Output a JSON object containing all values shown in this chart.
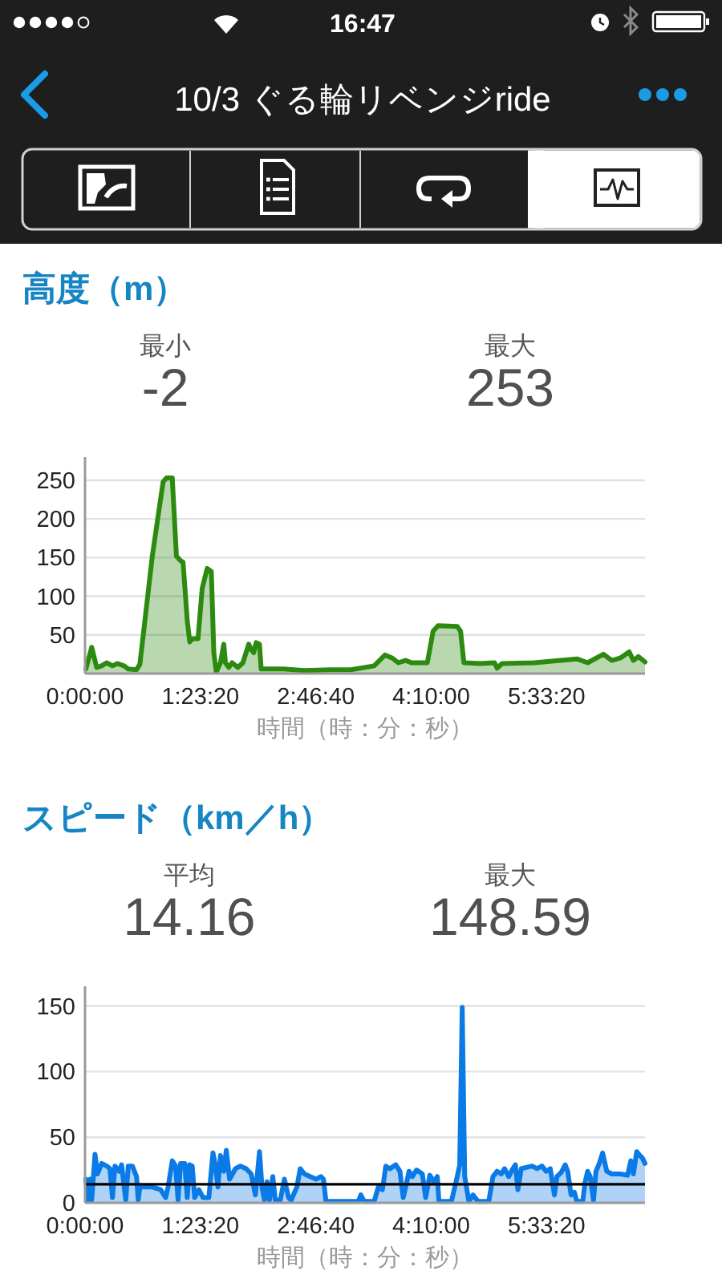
{
  "chart_data": [
    {
      "type": "area",
      "title": "高度（m）",
      "xlabel": "時間（時：分：秒）",
      "annotations": [
        "16:47",
        "10/3 ぐる輪リベンジride",
        "最小",
        "-2",
        "最大",
        "253"
      ],
      "x": [
        0.01,
        0.08,
        0.14,
        0.2,
        0.26,
        0.33,
        0.39,
        0.47,
        0.52,
        0.62,
        0.66,
        0.81,
        0.94,
        0.98,
        1.05,
        1.1,
        1.15,
        1.18,
        1.23,
        1.26,
        1.29,
        1.36,
        1.41,
        1.47,
        1.52,
        1.55,
        1.58,
        1.63,
        1.67,
        1.69,
        1.73,
        1.77,
        1.84,
        1.9,
        1.97,
        2.0,
        2.03,
        2.06,
        2.1,
        2.12,
        2.39,
        2.64,
        2.96,
        3.2,
        3.48,
        3.61,
        3.7,
        3.77,
        3.86,
        3.93,
        4.12,
        4.19,
        4.25,
        4.48,
        4.52,
        4.56,
        4.76,
        4.93,
        4.96,
        5.02,
        5.41,
        5.73,
        5.92,
        6.05,
        6.24,
        6.34,
        6.44,
        6.55,
        6.6,
        6.66,
        6.74
      ],
      "values": [
        6,
        34,
        8,
        10,
        14,
        10,
        13,
        10,
        6,
        5,
        12,
        152,
        248,
        253,
        253,
        152,
        146,
        144,
        69,
        41,
        45,
        45,
        110,
        136,
        132,
        27,
        2,
        14,
        38,
        14,
        8,
        14,
        8,
        14,
        38,
        31,
        27,
        40,
        38,
        6,
        6,
        4,
        5,
        5,
        10,
        24,
        20,
        14,
        17,
        14,
        14,
        55,
        62,
        61,
        55,
        14,
        13,
        14,
        7,
        13,
        14,
        17,
        19,
        14,
        25,
        17,
        20,
        28,
        17,
        22,
        15
      ],
      "color": "#2d8a10",
      "xlim": [
        0,
        6.74
      ],
      "ylim": [
        0,
        280
      ],
      "yticks": [
        50,
        100,
        150,
        200,
        250
      ],
      "xticks": [
        {
          "value": 0,
          "label": "0:00:00"
        },
        {
          "value": 1.3889,
          "label": "1:23:20"
        },
        {
          "value": 2.7778,
          "label": "2:46:40"
        },
        {
          "value": 4.1667,
          "label": "4:10:00"
        },
        {
          "value": 5.5556,
          "label": "5:33:20"
        }
      ],
      "grid": "y"
    },
    {
      "type": "area",
      "title": "スピード（km／h）",
      "xlabel": "時間（時：分：秒）",
      "annotations": [
        "平均",
        "14.16",
        "最大",
        "148.59"
      ],
      "x": [
        0.01,
        0.03,
        0.06,
        0.08,
        0.12,
        0.15,
        0.2,
        0.26,
        0.3,
        0.33,
        0.36,
        0.41,
        0.44,
        0.49,
        0.52,
        0.57,
        0.62,
        0.64,
        0.66,
        0.71,
        0.81,
        0.91,
        0.97,
        1.0,
        1.05,
        1.09,
        1.12,
        1.15,
        1.2,
        1.23,
        1.26,
        1.29,
        1.32,
        1.37,
        1.42,
        1.49,
        1.54,
        1.57,
        1.6,
        1.63,
        1.67,
        1.7,
        1.74,
        1.81,
        1.87,
        1.94,
        2.0,
        2.05,
        2.1,
        2.13,
        2.16,
        2.19,
        2.22,
        2.26,
        2.29,
        2.35,
        2.4,
        2.45,
        2.48,
        2.55,
        2.59,
        2.64,
        2.71,
        2.78,
        2.84,
        2.87,
        2.9,
        3.29,
        3.32,
        3.36,
        3.48,
        3.53,
        3.58,
        3.62,
        3.67,
        3.74,
        3.79,
        3.83,
        3.86,
        3.9,
        3.94,
        3.99,
        4.06,
        4.1,
        4.15,
        4.2,
        4.24,
        4.26,
        4.41,
        4.48,
        4.51,
        4.54,
        4.57,
        4.62,
        4.67,
        4.73,
        4.86,
        4.91,
        4.96,
        5.01,
        5.05,
        5.1,
        5.14,
        5.18,
        5.21,
        5.25,
        5.31,
        5.38,
        5.44,
        5.5,
        5.55,
        5.6,
        5.65,
        5.68,
        5.73,
        5.78,
        5.81,
        5.85,
        5.89,
        5.92,
        5.99,
        6.02,
        6.05,
        6.08,
        6.12,
        6.15,
        6.19,
        6.23,
        6.28,
        6.34,
        6.44,
        6.53,
        6.57,
        6.6,
        6.64,
        6.68,
        6.71,
        6.74
      ],
      "values": [
        18,
        2,
        18,
        2,
        37,
        22,
        30,
        28,
        26,
        4,
        28,
        24,
        29,
        2,
        28,
        28,
        20,
        2,
        12,
        12,
        12,
        10,
        4,
        12,
        32,
        28,
        2,
        30,
        30,
        4,
        29,
        28,
        4,
        10,
        4,
        4,
        38,
        28,
        12,
        36,
        24,
        40,
        18,
        26,
        28,
        26,
        22,
        6,
        39,
        12,
        2,
        16,
        2,
        20,
        2,
        2,
        18,
        4,
        2,
        12,
        26,
        22,
        20,
        18,
        20,
        18,
        1,
        1,
        6,
        1,
        1,
        12,
        10,
        28,
        26,
        29,
        24,
        4,
        12,
        24,
        20,
        25,
        22,
        4,
        21,
        16,
        20,
        1,
        1,
        20,
        29,
        149,
        20,
        1,
        6,
        1,
        1,
        20,
        24,
        22,
        26,
        20,
        25,
        29,
        10,
        26,
        27,
        28,
        26,
        28,
        24,
        26,
        6,
        20,
        23,
        29,
        24,
        6,
        8,
        1,
        1,
        16,
        24,
        20,
        2,
        24,
        30,
        38,
        24,
        22,
        22,
        21,
        32,
        22,
        39,
        36,
        34,
        30
      ],
      "color": "#0a7ae6",
      "xlim": [
        0,
        6.74
      ],
      "ylim": [
        0,
        165
      ],
      "yticks": [
        0,
        50,
        100,
        150
      ],
      "xticks": [
        {
          "value": 0,
          "label": "0:00:00"
        },
        {
          "value": 1.3889,
          "label": "1:23:20"
        },
        {
          "value": 2.7778,
          "label": "2:46:40"
        },
        {
          "value": 4.1667,
          "label": "4:10:00"
        },
        {
          "value": 5.5556,
          "label": "5:33:20"
        }
      ],
      "grid": "y",
      "ref_lines": [
        {
          "axis": "y",
          "value": 14.16,
          "color": "#000000"
        }
      ]
    }
  ]
}
